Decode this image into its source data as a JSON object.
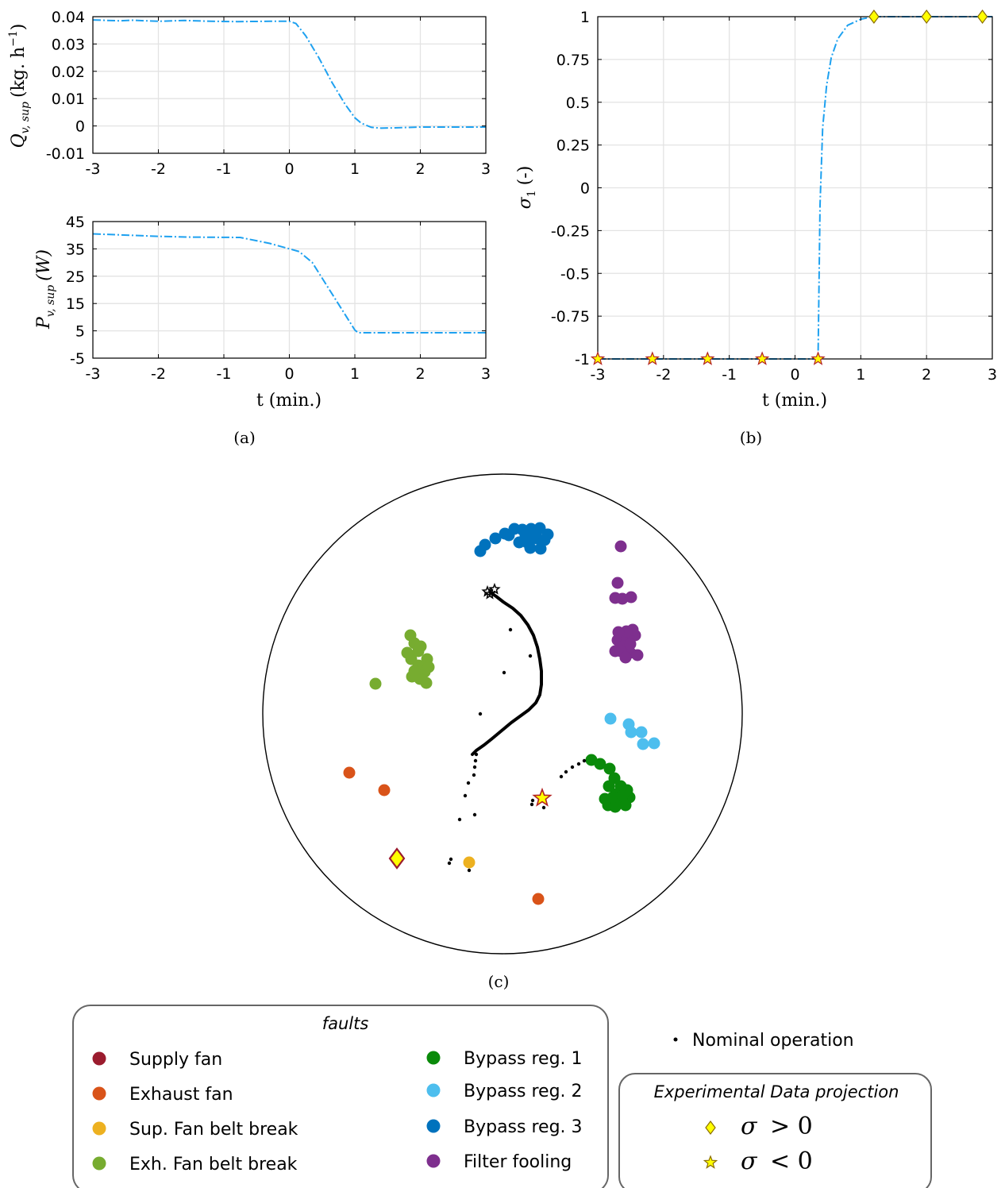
{
  "colors": {
    "curve": "#1ea1f0",
    "grid": "#e3e3e3",
    "supply_fan": "#9b1c2e",
    "exhaust_fan": "#d95319",
    "sup_belt": "#edb120",
    "exh_belt": "#77ac30",
    "bypass1": "#0a8a0a",
    "bypass2": "#4dbeee",
    "bypass3": "#0072bd",
    "filter": "#7e2f8e",
    "marker_fill": "#ffff00",
    "marker_edge": "#b22222"
  },
  "chart_data": [
    {
      "id": "a-top",
      "type": "line",
      "ylabel_main": "Q",
      "ylabel_sub": "v, sup",
      "ylabel_unit": "(kg. h",
      "ylabel_exp": "−1",
      "ylabel_close": ")",
      "xlim": [
        -3,
        3
      ],
      "ylim": [
        -0.01,
        0.04
      ],
      "xticks": [
        "-3",
        "-2",
        "-1",
        "0",
        "1",
        "2",
        "3"
      ],
      "yticks": [
        "-0.01",
        "0",
        "0.01",
        "0.02",
        "0.03",
        "0.04"
      ],
      "series": [
        {
          "x": [
            -3,
            -2.6,
            -2.4,
            -2,
            -1.6,
            -1.2,
            -0.8,
            -0.3,
            0,
            0.1,
            0.25,
            0.45,
            0.65,
            0.85,
            1.0,
            1.1,
            1.25,
            1.4,
            1.6,
            2,
            2.5,
            3
          ],
          "y": [
            0.0388,
            0.0385,
            0.0387,
            0.0383,
            0.0386,
            0.0383,
            0.0382,
            0.0383,
            0.0383,
            0.0375,
            0.033,
            0.025,
            0.016,
            0.008,
            0.003,
            0.001,
            -0.0005,
            -0.0008,
            -0.0007,
            -0.0004,
            -0.0004,
            -0.0004
          ]
        }
      ]
    },
    {
      "id": "a-bottom",
      "type": "line",
      "ylabel_main": "P",
      "ylabel_sub": "v, sup",
      "ylabel_unit": "(W)",
      "xlabel": "t (min.)",
      "xlim": [
        -3,
        3
      ],
      "ylim": [
        -5,
        45
      ],
      "xticks": [
        "-3",
        "-2",
        "-1",
        "0",
        "1",
        "2",
        "3"
      ],
      "yticks": [
        "-5",
        "5",
        "15",
        "25",
        "35",
        "45"
      ],
      "series": [
        {
          "x": [
            -3,
            -2,
            -1.5,
            -0.75,
            -0.3,
            0.15,
            0.35,
            1.0,
            1.05,
            1.3,
            2,
            2.5,
            3
          ],
          "y": [
            40.5,
            39.6,
            39.3,
            39.2,
            37,
            34,
            30,
            5.3,
            4.3,
            4.3,
            4.3,
            4.3,
            4.3
          ]
        }
      ]
    },
    {
      "id": "b",
      "type": "line",
      "ylabel_main": "σ",
      "ylabel_sub": "1",
      "ylabel_unit": "(-)",
      "xlabel": "t (min.)",
      "xlim": [
        -3,
        3
      ],
      "ylim": [
        -1,
        1
      ],
      "xticks": [
        "-3",
        "-2",
        "-1",
        "0",
        "1",
        "2",
        "3"
      ],
      "yticks": [
        "-1",
        "-0.75",
        "-0.5",
        "-0.25",
        "0",
        "0.25",
        "0.5",
        "0.75",
        "1"
      ],
      "series": [
        {
          "x": [
            -3,
            0.35,
            0.38,
            0.42,
            0.48,
            0.55,
            0.65,
            0.8,
            1.0,
            1.2,
            3
          ],
          "y": [
            -1,
            -1,
            -0.1,
            0.35,
            0.6,
            0.76,
            0.87,
            0.95,
            0.985,
            1,
            1
          ]
        }
      ],
      "markers_star_x": [
        -3,
        -2.17,
        -1.33,
        -0.5,
        0.35
      ],
      "markers_diamond_x": [
        1.2,
        2,
        2.85
      ]
    }
  ],
  "captions": {
    "a": "(a)",
    "b": "(b)",
    "c": "(c)"
  },
  "projection": {
    "clusters": [
      {
        "group": "bypass3",
        "points": [
          [
            605,
            694
          ],
          [
            611,
            686
          ],
          [
            624,
            678
          ],
          [
            636,
            672
          ],
          [
            648,
            666
          ],
          [
            658,
            667
          ],
          [
            669,
            666
          ],
          [
            680,
            665
          ],
          [
            654,
            683
          ],
          [
            664,
            683
          ],
          [
            676,
            678
          ],
          [
            686,
            680
          ],
          [
            668,
            690
          ],
          [
            681,
            691
          ],
          [
            641,
            674
          ],
          [
            675,
            672
          ],
          [
            662,
            675
          ],
          [
            690,
            673
          ]
        ]
      },
      {
        "group": "filter",
        "points": [
          [
            782,
            688
          ],
          [
            778,
            734
          ],
          [
            775,
            753
          ],
          [
            784,
            754
          ],
          [
            795,
            752
          ],
          [
            778,
            806
          ],
          [
            790,
            803
          ],
          [
            800,
            800
          ],
          [
            785,
            814
          ],
          [
            794,
            822
          ],
          [
            803,
            825
          ],
          [
            775,
            820
          ],
          [
            797,
            793
          ],
          [
            789,
            795
          ],
          [
            782,
            820
          ],
          [
            788,
            828
          ],
          [
            779,
            796
          ],
          [
            794,
            811
          ]
        ]
      },
      {
        "group": "exh_belt",
        "points": [
          [
            473,
            861
          ],
          [
            517,
            800
          ],
          [
            522,
            810
          ],
          [
            530,
            814
          ],
          [
            518,
            830
          ],
          [
            527,
            838
          ],
          [
            535,
            846
          ],
          [
            519,
            852
          ],
          [
            529,
            855
          ],
          [
            537,
            860
          ],
          [
            527,
            820
          ],
          [
            538,
            830
          ],
          [
            513,
            822
          ],
          [
            540,
            840
          ],
          [
            522,
            845
          ]
        ]
      },
      {
        "group": "bypass2",
        "points": [
          [
            769,
            905
          ],
          [
            792,
            912
          ],
          [
            795,
            922
          ],
          [
            808,
            922
          ],
          [
            810,
            937
          ],
          [
            824,
            936
          ]
        ]
      },
      {
        "group": "bypass1",
        "points": [
          [
            745,
            957
          ],
          [
            756,
            962
          ],
          [
            768,
            968
          ],
          [
            774,
            980
          ],
          [
            782,
            990
          ],
          [
            767,
            990
          ],
          [
            776,
            1000
          ],
          [
            762,
            1006
          ],
          [
            793,
            1004
          ],
          [
            780,
            1010
          ],
          [
            766,
            1014
          ],
          [
            788,
            1014
          ],
          [
            775,
            1016
          ],
          [
            790,
            995
          ],
          [
            772,
            1004
          ],
          [
            784,
            1002
          ]
        ]
      },
      {
        "group": "exhaust_fan",
        "points": [
          [
            440,
            973
          ],
          [
            484,
            995
          ],
          [
            678,
            1132
          ]
        ]
      },
      {
        "group": "sup_belt",
        "points": [
          [
            591,
            1086
          ]
        ]
      }
    ],
    "nominal_path": [
      [
        619,
        747
      ],
      [
        625,
        751
      ],
      [
        634,
        758
      ],
      [
        646,
        766
      ],
      [
        656,
        775
      ],
      [
        665,
        787
      ],
      [
        672,
        800
      ],
      [
        677,
        815
      ],
      [
        680,
        830
      ],
      [
        682,
        845
      ],
      [
        682,
        862
      ],
      [
        680,
        875
      ],
      [
        675,
        885
      ],
      [
        666,
        894
      ],
      [
        655,
        902
      ],
      [
        644,
        910
      ],
      [
        632,
        920
      ],
      [
        620,
        930
      ],
      [
        610,
        938
      ],
      [
        600,
        945
      ],
      [
        595,
        950
      ]
    ],
    "nominal_dots": [
      [
        643,
        793
      ],
      [
        668,
        826
      ],
      [
        635,
        847
      ],
      [
        605,
        899
      ],
      [
        600,
        950
      ],
      [
        599,
        958
      ],
      [
        598,
        966
      ],
      [
        597,
        976
      ],
      [
        590,
        986
      ],
      [
        586,
        1002
      ],
      [
        579,
        1032
      ],
      [
        598,
        1026
      ],
      [
        568,
        1082
      ],
      [
        566,
        1087
      ],
      [
        591,
        1096
      ],
      [
        707,
        978
      ],
      [
        713,
        972
      ],
      [
        721,
        966
      ],
      [
        729,
        962
      ],
      [
        736,
        958
      ],
      [
        671,
        1008
      ],
      [
        670,
        1013
      ],
      [
        685,
        1017
      ]
    ],
    "cluster_star": [
      [
        617,
        748
      ],
      [
        623,
        742
      ],
      [
        614,
        745
      ]
    ],
    "star_marker": [
      683,
      1005
    ],
    "diamond_marker": [
      500,
      1081
    ]
  },
  "legend": {
    "title": "faults",
    "left_items": [
      {
        "label": "Supply fan",
        "group": "supply_fan"
      },
      {
        "label": "Exhaust fan",
        "group": "exhaust_fan"
      },
      {
        "label": "Sup. Fan belt break",
        "group": "sup_belt"
      },
      {
        "label": "Exh. Fan belt break",
        "group": "exh_belt"
      }
    ],
    "right_items": [
      {
        "label": "Bypass reg. 1",
        "group": "bypass1"
      },
      {
        "label": "Bypass reg. 2",
        "group": "bypass2"
      },
      {
        "label": "Bypass reg. 3",
        "group": "bypass3"
      },
      {
        "label": "Filter fooling",
        "group": "filter"
      }
    ],
    "nominal_label": "Nominal operation",
    "exp_title": "Experimental Data projection",
    "exp_symbol": "σ",
    "exp_gt": "> 0",
    "exp_lt": "< 0"
  }
}
